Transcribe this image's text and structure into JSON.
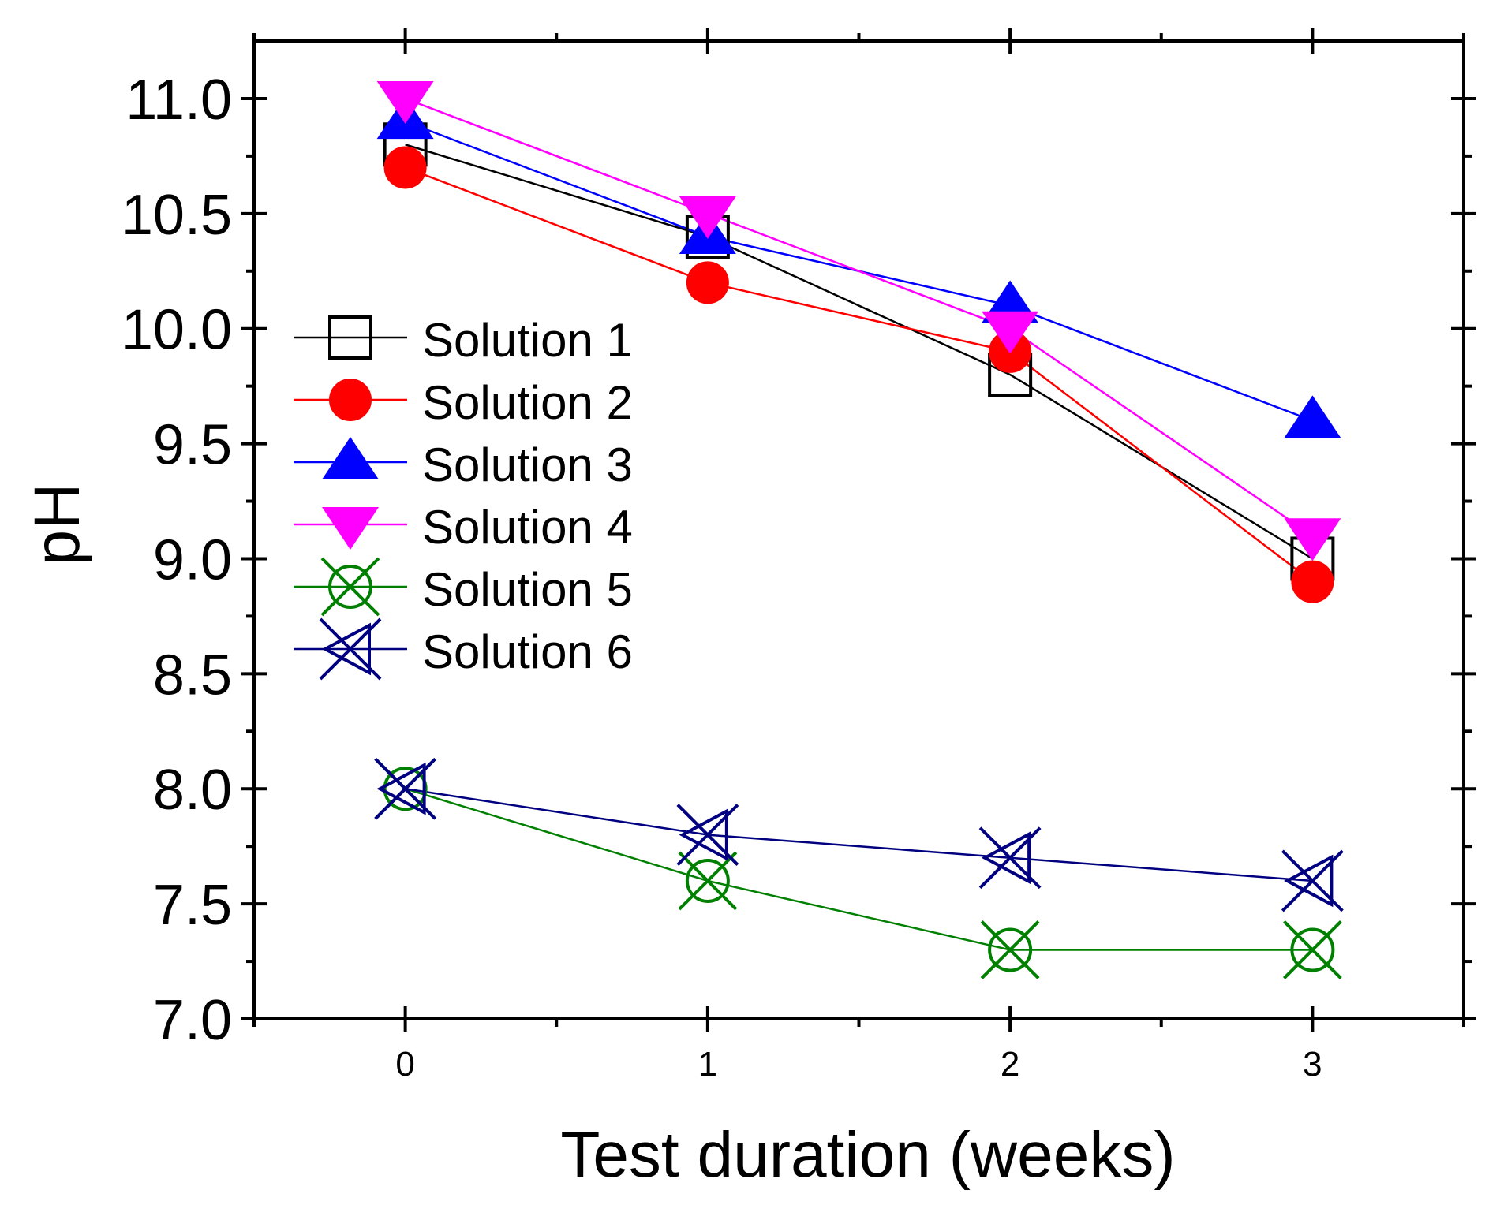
{
  "chart_data": {
    "type": "line",
    "title": "",
    "xlabel": "Test duration (weeks)",
    "ylabel": "pH",
    "x": [
      0,
      1,
      2,
      3
    ],
    "xlim": [
      -0.5,
      3.5
    ],
    "ylim": [
      7.0,
      11.25
    ],
    "xticks": [
      "0",
      "1",
      "2",
      "3"
    ],
    "yticks": [
      "7.0",
      "7.5",
      "8.0",
      "8.5",
      "9.0",
      "9.5",
      "10.0",
      "10.5",
      "11.0"
    ],
    "grid": false,
    "legend_position": "upper-left",
    "series": [
      {
        "name": "Solution 1",
        "color": "#000000",
        "marker": "open-square",
        "values": [
          10.8,
          10.4,
          9.8,
          9.0
        ]
      },
      {
        "name": "Solution 2",
        "color": "#ff0000",
        "marker": "filled-circle",
        "values": [
          10.7,
          10.2,
          9.9,
          8.9
        ]
      },
      {
        "name": "Solution 3",
        "color": "#0000ff",
        "marker": "filled-triangle-up",
        "values": [
          10.9,
          10.4,
          10.1,
          9.6
        ]
      },
      {
        "name": "Solution 4",
        "color": "#ff00ff",
        "marker": "filled-triangle-down",
        "values": [
          11.0,
          10.5,
          10.0,
          9.1
        ]
      },
      {
        "name": "Solution 5",
        "color": "#008000",
        "marker": "crossed-circle",
        "values": [
          8.0,
          7.6,
          7.3,
          7.3
        ]
      },
      {
        "name": "Solution 6",
        "color": "#000080",
        "marker": "x-left-triangle",
        "values": [
          8.0,
          7.8,
          7.7,
          7.6
        ]
      }
    ]
  }
}
